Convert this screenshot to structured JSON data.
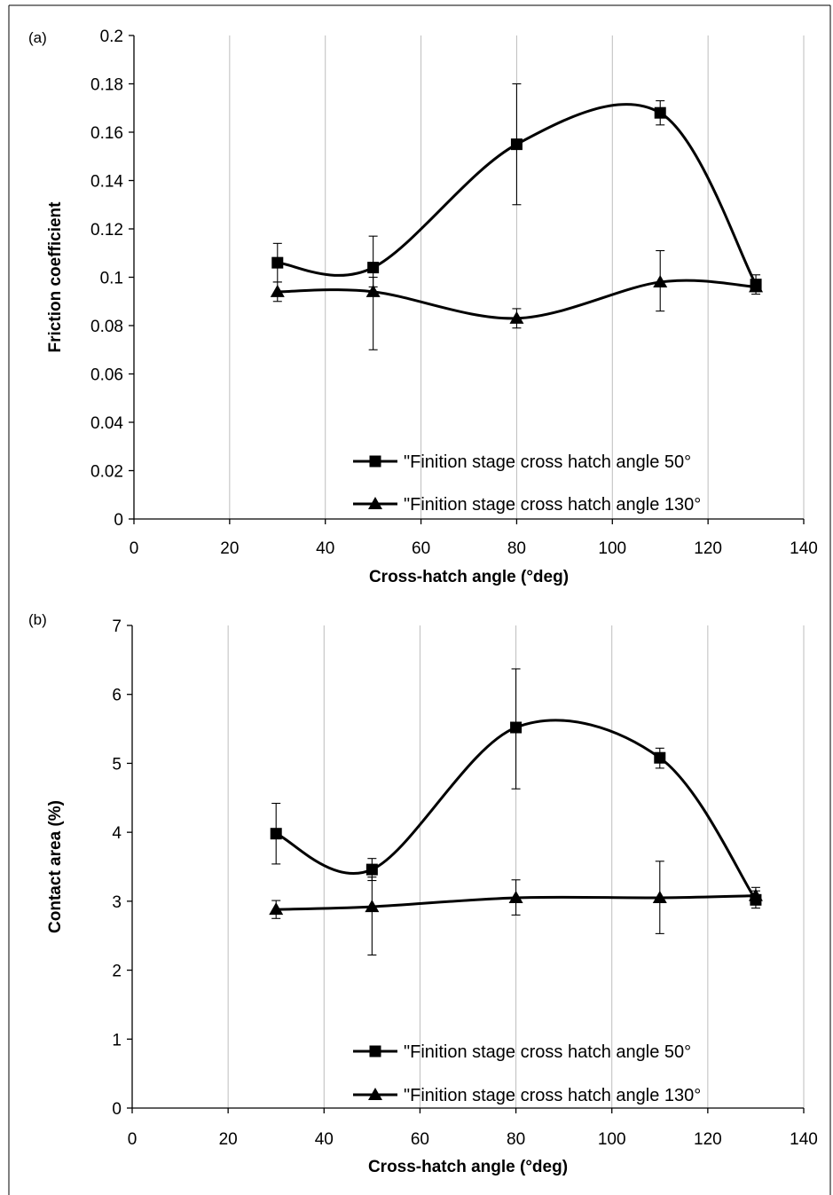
{
  "chart_data": [
    {
      "type": "line",
      "panel_label": "(a)",
      "xlabel": "Cross-hatch angle (°deg)",
      "ylabel": "Friction coefficient",
      "xlim": [
        0,
        140
      ],
      "ylim": [
        0,
        0.2
      ],
      "xticks": [
        0,
        20,
        40,
        60,
        80,
        100,
        120,
        140
      ],
      "yticks": [
        0,
        0.02,
        0.04,
        0.06,
        0.08,
        0.1,
        0.12,
        0.14,
        0.16,
        0.18,
        0.2
      ],
      "ytick_labels": [
        "0",
        "0.02",
        "0.04",
        "0.06",
        "0.08",
        "0.1",
        "0.12",
        "0.14",
        "0.16",
        "0.18",
        "0.2"
      ],
      "grid": "vertical",
      "legend_position": "bottom-right",
      "series": [
        {
          "name": "\"Finition stage cross hatch angle 50°",
          "marker": "square",
          "x": [
            30,
            50,
            80,
            110,
            130
          ],
          "y": [
            0.106,
            0.104,
            0.155,
            0.168,
            0.097
          ],
          "err_low": [
            0.098,
            0.096,
            0.13,
            0.163,
            0.094
          ],
          "err_high": [
            0.114,
            0.117,
            0.18,
            0.173,
            0.101
          ]
        },
        {
          "name": "\"Finition stage cross hatch angle 130°",
          "marker": "triangle",
          "x": [
            30,
            50,
            80,
            110,
            130
          ],
          "y": [
            0.094,
            0.094,
            0.083,
            0.098,
            0.096
          ],
          "err_low": [
            0.09,
            0.07,
            0.079,
            0.086,
            0.093
          ],
          "err_high": [
            0.098,
            0.1,
            0.087,
            0.111,
            0.099
          ]
        }
      ]
    },
    {
      "type": "line",
      "panel_label": "(b)",
      "xlabel": "Cross-hatch angle (°deg)",
      "ylabel": "Contact area (%)",
      "xlim": [
        0,
        140
      ],
      "ylim": [
        0,
        7
      ],
      "xticks": [
        0,
        20,
        40,
        60,
        80,
        100,
        120,
        140
      ],
      "yticks": [
        0,
        1,
        2,
        3,
        4,
        5,
        6,
        7
      ],
      "ytick_labels": [
        "0",
        "1",
        "2",
        "3",
        "4",
        "5",
        "6",
        "7"
      ],
      "grid": "vertical",
      "legend_position": "bottom-right",
      "series": [
        {
          "name": "\"Finition stage cross hatch angle 50°",
          "marker": "square",
          "x": [
            30,
            50,
            80,
            110,
            130
          ],
          "y": [
            3.98,
            3.46,
            5.52,
            5.08,
            3.02
          ],
          "err_low": [
            3.54,
            3.3,
            4.63,
            4.93,
            2.9
          ],
          "err_high": [
            4.42,
            3.62,
            6.37,
            5.22,
            3.15
          ]
        },
        {
          "name": "\"Finition stage cross hatch angle 130°",
          "marker": "triangle",
          "x": [
            30,
            50,
            80,
            110,
            130
          ],
          "y": [
            2.88,
            2.92,
            3.05,
            3.05,
            3.08
          ],
          "err_low": [
            2.75,
            2.22,
            2.8,
            2.53,
            2.96
          ],
          "err_high": [
            3.01,
            3.35,
            3.31,
            3.58,
            3.2
          ]
        }
      ]
    }
  ]
}
